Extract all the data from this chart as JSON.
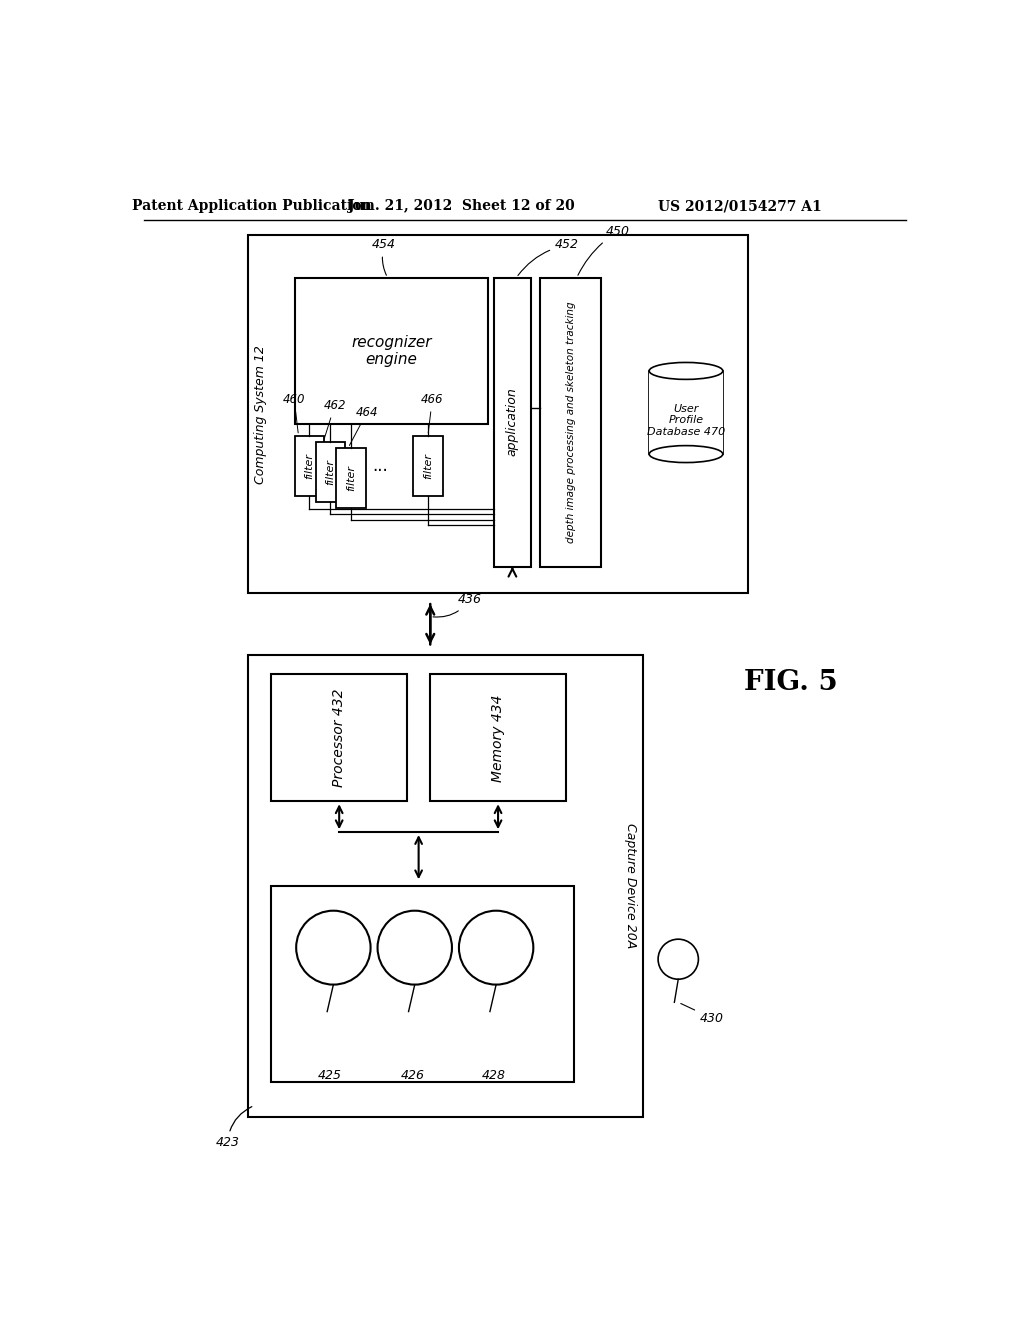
{
  "title_left": "Patent Application Publication",
  "title_mid": "Jun. 21, 2012  Sheet 12 of 20",
  "title_right": "US 2012/0154277 A1",
  "fig_label": "FIG. 5",
  "background_color": "#ffffff",
  "line_color": "#000000",
  "text_color": "#000000"
}
